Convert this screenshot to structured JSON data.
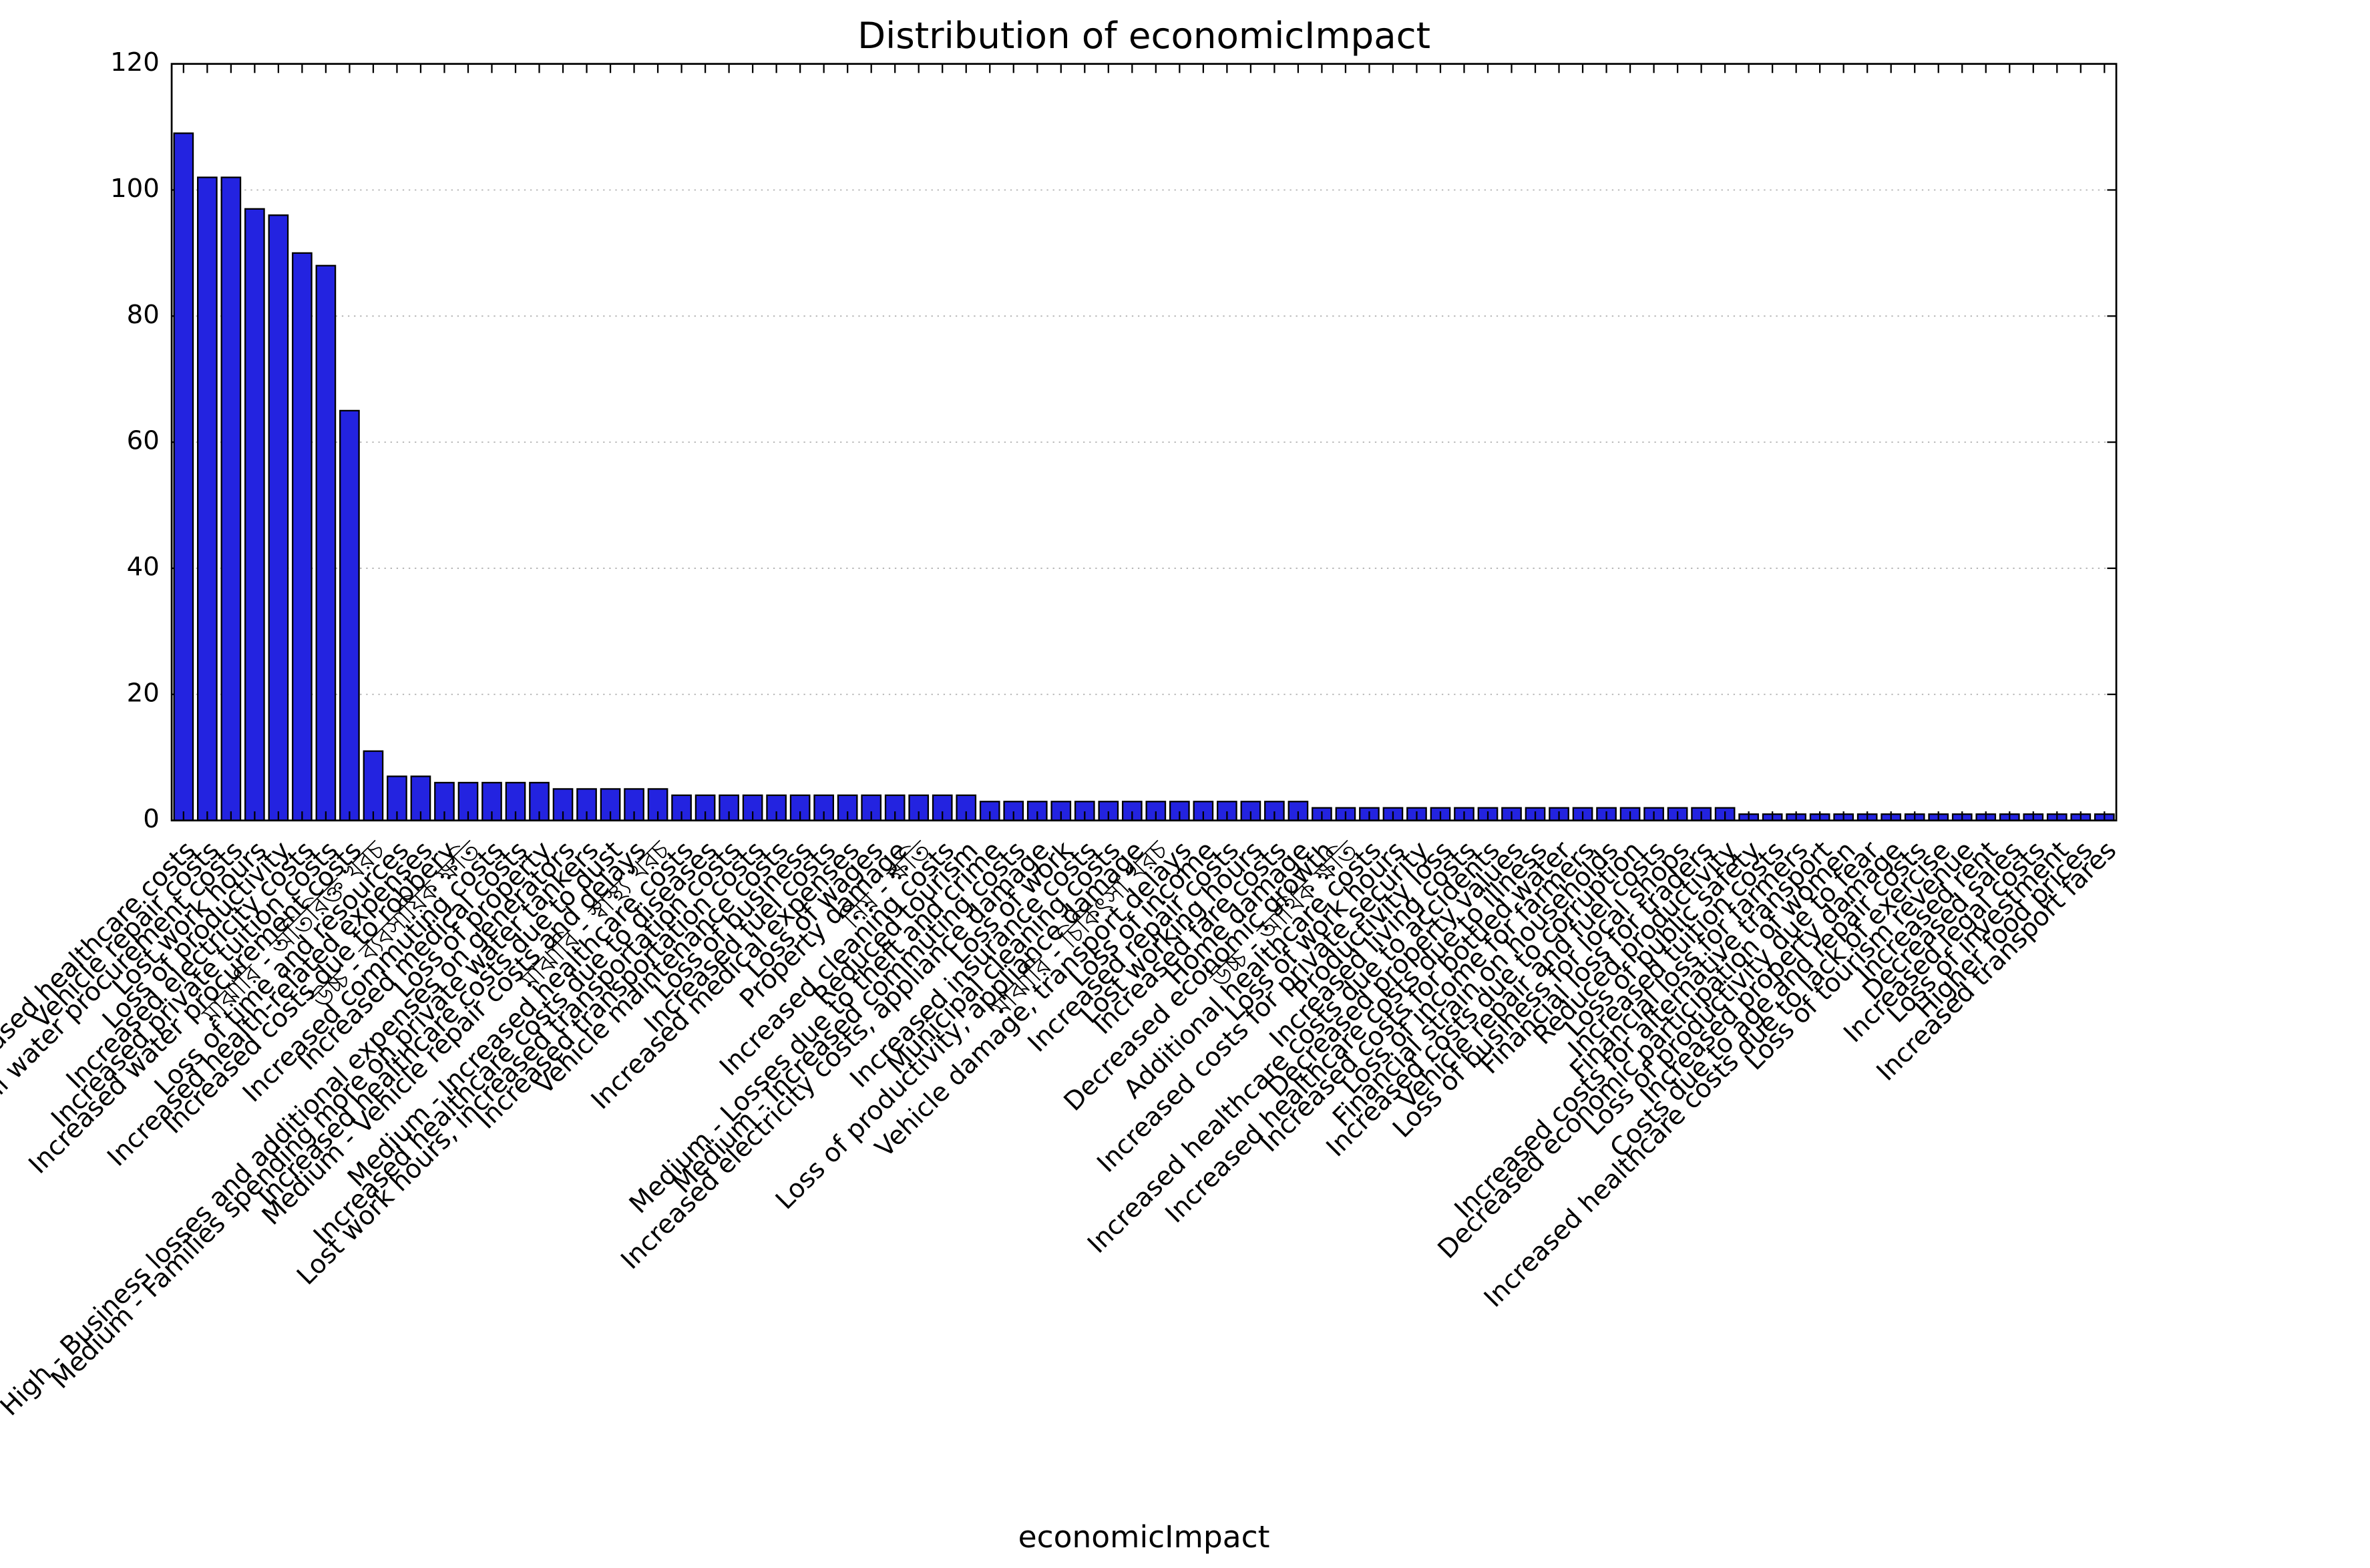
{
  "chart_data": {
    "type": "bar",
    "title": "Distribution of economicImpact",
    "x_label": "economicImpact",
    "categories": [
      "Increased healthcare costs",
      "Vehicle repair costs",
      "Additional water procurement costs",
      "Lost work hours",
      "Loss of productivity",
      "Increased electricity costs",
      "Increased private tuition costs",
      "Increased water procurement costs",
      "মাঝারি - অতিরিক্ত খরচ",
      "Loss of time and resources",
      "Increased health-related expenses",
      "Increased costs due to robbery",
      "উচ্চ - ব্যবসায়িক ক্ষতি",
      "Increased commuting costs",
      "Increased medical costs",
      "Loss of property",
      "High - Business losses and additional expenses on generators",
      "Medium - Families spending more on private water tankers",
      "Increased healthcare costs due to dust",
      "Medium - Vehicle repair costs and delays",
      "মাঝারি - স্বাস্থ্য খরচ",
      "Medium - Increased healthcare costs",
      "Increased healthcare costs due to diseases",
      "Lost work hours, increased transportation costs",
      "Increased transportation costs",
      "Vehicle maintenance costs",
      "Loss of business",
      "Increased fuel costs",
      "Increased medical expenses",
      "Loss of wages",
      "Property damage",
      "নিম্ন - ক্ষতি",
      "Increased cleaning costs",
      "Reduced tourism",
      "Medium - Losses due to theft and crime",
      "Medium - Increased commuting costs",
      "Increased electricity costs, appliance damage",
      "Loss of work",
      "Increased insurance costs",
      "Municipal cleaning costs",
      "Loss of productivity, appliance damage",
      "মাঝারি - চিকিৎসা খরচ",
      "Vehicle damage, transport delays",
      "Loss of income",
      "Increased repair costs",
      "Lost working hours",
      "Increased fare costs",
      "Home damage",
      "Decreased economic growth",
      "উচ্চ - আর্থিক ক্ষতি",
      "Additional healthcare costs",
      "Loss of work hours",
      "Increased costs for private security",
      "Productivity loss",
      "Increased living costs",
      "Increased healthcare costs due to accidents",
      "Decreased property values",
      "Increased healthcare costs due to illness",
      "Increased costs for bottled water",
      "Loss of income for farmers",
      "Financial strain on households",
      "Increased costs due to corruption",
      "Vehicle repair and fuel costs",
      "Loss of business for local shops",
      "Financial loss for traders",
      "Reduced productivity",
      "Loss of public safety",
      "Increased tuition costs",
      "Financial loss for farmers",
      "Increased costs for alternative transport",
      "Decreased economic participation of women",
      "Loss of productivity due to fear",
      "Increased property damage",
      "Costs due to age and repair costs",
      "Increased healthcare costs due to lack of exercise",
      "Loss of tourism revenue",
      "Increased rent",
      "Decreased sales",
      "Increased legal costs",
      "Loss of investment",
      "Higher food prices",
      "Increased transport fares"
    ],
    "values": [
      109,
      102,
      102,
      97,
      96,
      90,
      88,
      65,
      11,
      7,
      7,
      6,
      6,
      6,
      6,
      6,
      5,
      5,
      5,
      5,
      5,
      4,
      4,
      4,
      4,
      4,
      4,
      4,
      4,
      4,
      4,
      4,
      4,
      4,
      3,
      3,
      3,
      3,
      3,
      3,
      3,
      3,
      3,
      3,
      3,
      3,
      3,
      3,
      2,
      2,
      2,
      2,
      2,
      2,
      2,
      2,
      2,
      2,
      2,
      2,
      2,
      2,
      2,
      2,
      2,
      2,
      1,
      1,
      1,
      1,
      1,
      1,
      1,
      1,
      1,
      1,
      1,
      1,
      1,
      1,
      1,
      1
    ],
    "color": "#2323e0",
    "ylim": [
      0,
      120
    ],
    "yticks": [
      0,
      20,
      40,
      60,
      80,
      100,
      120
    ],
    "grid": true
  }
}
